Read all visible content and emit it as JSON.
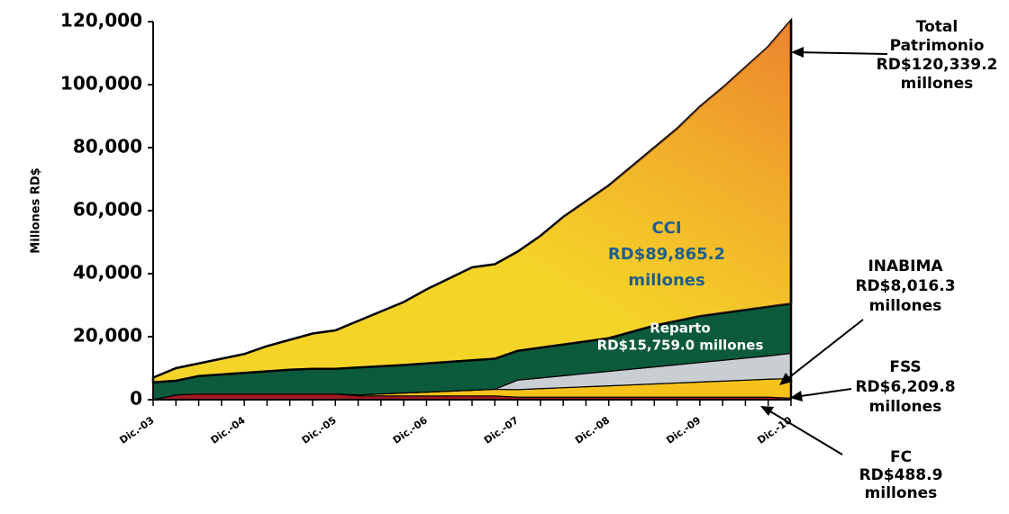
{
  "chart_data": {
    "type": "stacked_area",
    "y_label": "Millones RD$",
    "categories": [
      "Dic.-03",
      null,
      null,
      null,
      "Dic.-04",
      null,
      null,
      null,
      "Dic.-05",
      null,
      null,
      null,
      "Dic.-06",
      null,
      null,
      null,
      "Dic.-07",
      null,
      null,
      null,
      "Dic.-08",
      null,
      null,
      null,
      "Dic.-09",
      null,
      null,
      null,
      "Dic.-10"
    ],
    "ylim": [
      0,
      120000
    ],
    "yticks": [
      {
        "value": 0,
        "label": "0"
      },
      {
        "value": 20000,
        "label": "20,000"
      },
      {
        "value": 40000,
        "label": "40,000"
      },
      {
        "value": 60000,
        "label": "60,000"
      },
      {
        "value": 80000,
        "label": "80,000"
      },
      {
        "value": 100000,
        "label": "100,000"
      },
      {
        "value": 120000,
        "label": "120,000"
      }
    ],
    "series": [
      {
        "name": "FC",
        "color": "#a31a24",
        "values": [
          0,
          1500,
          1800,
          1800,
          1800,
          1800,
          1800,
          1800,
          1800,
          1200,
          1200,
          1200,
          1200,
          1200,
          1200,
          1200,
          800,
          800,
          800,
          800,
          800,
          800,
          800,
          800,
          800,
          800,
          800,
          800,
          488.9
        ]
      },
      {
        "name": "FSS",
        "color": "#f6c21a",
        "values": [
          0,
          0,
          0,
          0,
          0,
          0,
          0,
          0,
          0,
          300,
          600,
          900,
          1200,
          1500,
          1800,
          2100,
          2400,
          2700,
          3000,
          3300,
          3600,
          3900,
          4200,
          4500,
          4800,
          5100,
          5400,
          5700,
          6209.8
        ]
      },
      {
        "name": "INABIMA",
        "color": "#c9ced2",
        "values": [
          0,
          0,
          0,
          0,
          0,
          0,
          0,
          0,
          0,
          0,
          0,
          0,
          0,
          0,
          0,
          0,
          3000,
          3400,
          3800,
          4200,
          4600,
          5000,
          5400,
          5800,
          6200,
          6600,
          7000,
          7400,
          8016.3
        ]
      },
      {
        "name": "Reparto",
        "color": "#0b5a3c",
        "values": [
          5500,
          4500,
          5700,
          6200,
          6700,
          7200,
          7700,
          8000,
          8000,
          8700,
          8800,
          8900,
          9100,
          9300,
          9500,
          9700,
          9300,
          9600,
          9900,
          10200,
          10500,
          11800,
          13100,
          13900,
          14700,
          15000,
          15300,
          15600,
          15759
        ]
      },
      {
        "name": "CCI",
        "color": "#f5d428",
        "values": [
          1500,
          4000,
          4000,
          5000,
          6000,
          8000,
          9500,
          11200,
          12200,
          14800,
          17400,
          20000,
          23500,
          26500,
          29500,
          30000,
          31500,
          35500,
          40500,
          44500,
          48500,
          52500,
          56500,
          61000,
          66500,
          71500,
          77000,
          82500,
          89865.2
        ]
      }
    ],
    "annotations": [
      {
        "lines": [
          "Total",
          "Patrimonio",
          "RD$120,339.2",
          "millones"
        ]
      },
      {
        "lines": [
          "CCI",
          "RD$89,865.2",
          "millones"
        ]
      },
      {
        "lines": [
          "INABIMA",
          "RD$8,016.3",
          "millones"
        ]
      },
      {
        "lines": [
          "Reparto",
          "RD$15,759.0 millones"
        ]
      },
      {
        "lines": [
          "FSS",
          "RD$6,209.8",
          "millones"
        ]
      },
      {
        "lines": [
          "FC",
          "RD$488.9",
          "millones"
        ]
      }
    ]
  }
}
